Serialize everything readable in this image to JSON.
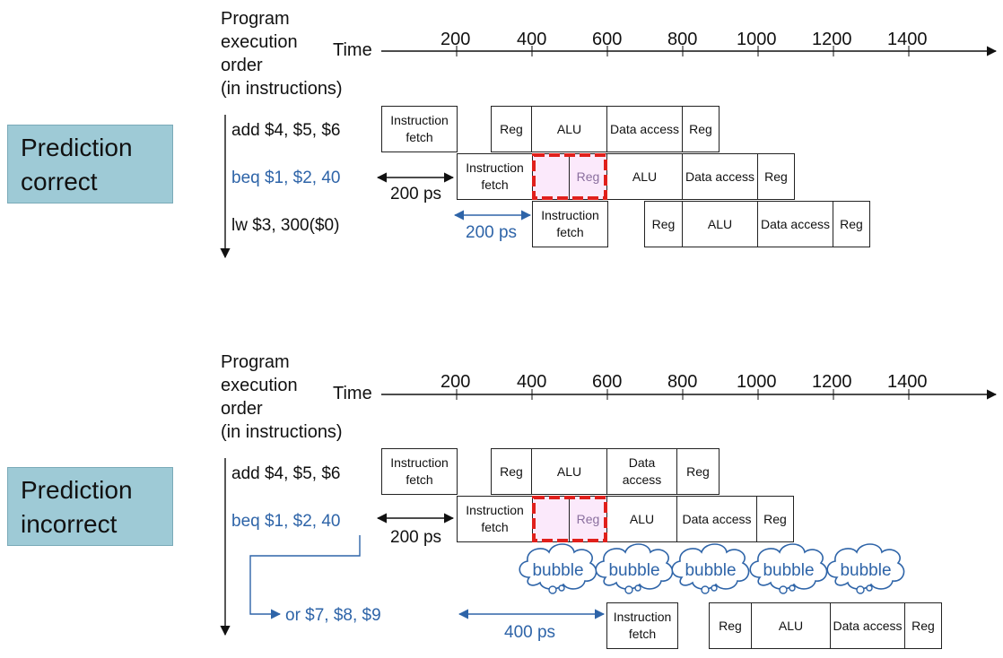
{
  "top": {
    "label": [
      "Prediction",
      "correct"
    ],
    "header": [
      "Program",
      "execution",
      "order",
      "(in instructions)"
    ],
    "time_label": "Time",
    "ticks": [
      "200",
      "400",
      "600",
      "800",
      "1000",
      "1200",
      "1400"
    ],
    "instructions": [
      "add $4, $5, $6",
      "beq $1, $2, 40",
      "lw  $3, 300($0)"
    ],
    "durations": [
      "200 ps",
      "200 ps"
    ],
    "rows": [
      [
        "Instruction fetch",
        "Reg",
        "ALU",
        "Data access",
        "Reg"
      ],
      [
        "Instruction fetch",
        "",
        "Reg",
        "ALU",
        "Data access",
        "Reg"
      ],
      [
        "Instruction fetch",
        "Reg",
        "ALU",
        "Data access",
        "Reg"
      ]
    ]
  },
  "bottom": {
    "label": [
      "Prediction",
      "incorrect"
    ],
    "header": [
      "Program",
      "execution",
      "order",
      "(in instructions)"
    ],
    "time_label": "Time",
    "ticks": [
      "200",
      "400",
      "600",
      "800",
      "1000",
      "1200",
      "1400"
    ],
    "instructions": [
      "add $4, $5, $6",
      "beq $1, $2, 40",
      "or $7, $8, $9"
    ],
    "durations": [
      "200 ps",
      "400 ps"
    ],
    "bubble": "bubble",
    "rows": [
      [
        "Instruction fetch",
        "Reg",
        "ALU",
        "Data access",
        "Reg"
      ],
      [
        "Instruction fetch",
        "",
        "Reg",
        "ALU",
        "Data access",
        "Reg"
      ],
      [
        "Instruction fetch",
        "Reg",
        "ALU",
        "Data access",
        "Reg"
      ]
    ]
  },
  "colors": {
    "label_bg": "#9ecad6",
    "accent_blue": "#2e64a8",
    "highlight_red": "#e0201c"
  }
}
